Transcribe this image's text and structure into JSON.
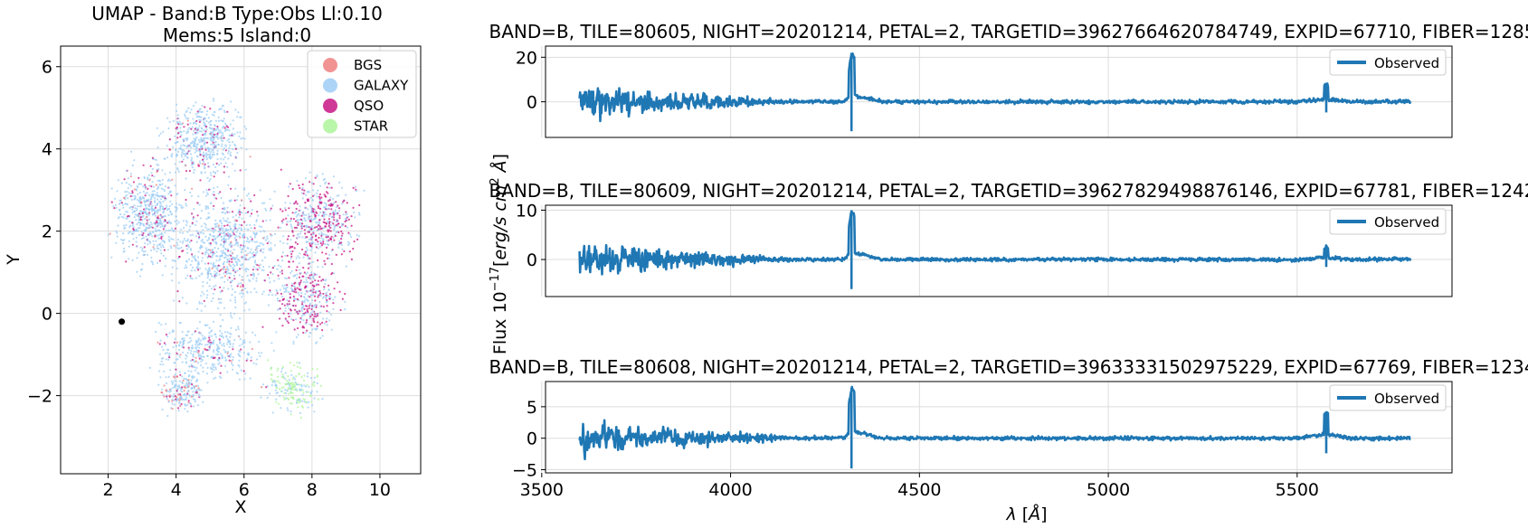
{
  "chart_data": [
    {
      "type": "scatter",
      "title": "UMAP  -  Band:B Type:Obs Ll:0.10",
      "subtitle": "Mems:5 Island:0",
      "xlabel": "X",
      "ylabel": "Y",
      "xlim": [
        0.6,
        11.2
      ],
      "ylim": [
        -3.9,
        6.5
      ],
      "xticks": [
        2,
        4,
        6,
        8,
        10
      ],
      "yticks": [
        -2,
        0,
        2,
        4,
        6
      ],
      "grid": true,
      "legend": {
        "placement": "top-right"
      },
      "series": [
        {
          "name": "BGS",
          "color": "#f08080"
        },
        {
          "name": "GALAXY",
          "color": "#9ecdf5"
        },
        {
          "name": "QSO",
          "color": "#c71585"
        },
        {
          "name": "STAR",
          "color": "#adf59a"
        }
      ],
      "highlight_points": [
        {
          "x": 2.4,
          "y": -0.2
        }
      ]
    },
    {
      "type": "line",
      "title": "BAND=B, TILE=80605, NIGHT=20201214, PETAL=2, TARGETID=39627664620784749, EXPID=67710, FIBER=1285",
      "xlim": [
        3510,
        5910
      ],
      "ylim": [
        -16,
        25
      ],
      "xticks": [
        3500,
        4000,
        4500,
        5000,
        5500
      ],
      "yticks": [
        0,
        20
      ],
      "grid": true,
      "legend": {
        "placement": "top-right"
      },
      "series": [
        {
          "name": "Observed",
          "color": "#1f77b4",
          "x": [
            3600,
            3700,
            3800,
            3900,
            4000,
            4100,
            4200,
            4300,
            4320,
            4400,
            4500,
            4600,
            4700,
            4800,
            4900,
            5000,
            5100,
            5200,
            5300,
            5400,
            5500,
            5577,
            5650,
            5800
          ],
          "y": [
            0,
            1,
            0.5,
            0,
            0.5,
            0,
            0,
            0.5,
            22,
            0,
            0,
            -0.5,
            0,
            0,
            -0.5,
            0,
            0,
            0,
            0,
            0,
            0,
            8,
            0,
            1
          ]
        }
      ]
    },
    {
      "type": "line",
      "title": "BAND=B, TILE=80609, NIGHT=20201214, PETAL=2, TARGETID=39627829498876146, EXPID=67781, FIBER=1242",
      "xlim": [
        3510,
        5910
      ],
      "ylim": [
        -7.5,
        11
      ],
      "xticks": [
        3500,
        4000,
        4500,
        5000,
        5500
      ],
      "yticks": [
        0,
        10
      ],
      "grid": true,
      "legend": {
        "placement": "top-right"
      },
      "series": [
        {
          "name": "Observed",
          "color": "#1f77b4",
          "x": [
            3600,
            3700,
            3800,
            3900,
            4000,
            4100,
            4200,
            4300,
            4320,
            4400,
            4500,
            4600,
            4700,
            4800,
            4900,
            5000,
            5100,
            5200,
            5300,
            5400,
            5500,
            5577,
            5650,
            5800
          ],
          "y": [
            0,
            0,
            0,
            0,
            0,
            0,
            0,
            0,
            10,
            0,
            0,
            0,
            0,
            0,
            0,
            0,
            0,
            0,
            0,
            0,
            0,
            2.5,
            0,
            0.5
          ]
        }
      ]
    },
    {
      "type": "line",
      "title": "BAND=B, TILE=80608, NIGHT=20201214, PETAL=2, TARGETID=39633331502975229, EXPID=67769, FIBER=1234",
      "xlabel": "λ [Å]",
      "xlim": [
        3510,
        5910
      ],
      "ylim": [
        -5.5,
        9
      ],
      "xticks": [
        3500,
        4000,
        4500,
        5000,
        5500
      ],
      "yticks": [
        -5,
        0,
        5
      ],
      "grid": true,
      "legend": {
        "placement": "top-right"
      },
      "series": [
        {
          "name": "Observed",
          "color": "#1f77b4",
          "x": [
            3600,
            3700,
            3800,
            3900,
            4000,
            4100,
            4200,
            4300,
            4320,
            4400,
            4500,
            4600,
            4700,
            4800,
            4900,
            5000,
            5100,
            5200,
            5300,
            5400,
            5500,
            5577,
            5650,
            5800
          ],
          "y": [
            0,
            1,
            0.5,
            0.5,
            0.5,
            0,
            0,
            0.5,
            8,
            0,
            0,
            0,
            0,
            0,
            0,
            0,
            0,
            0,
            0,
            0,
            0,
            4,
            0,
            0
          ]
        }
      ]
    }
  ],
  "shared_ylabel": "Flux 10⁻¹⁷[erg/s cm² Å]"
}
